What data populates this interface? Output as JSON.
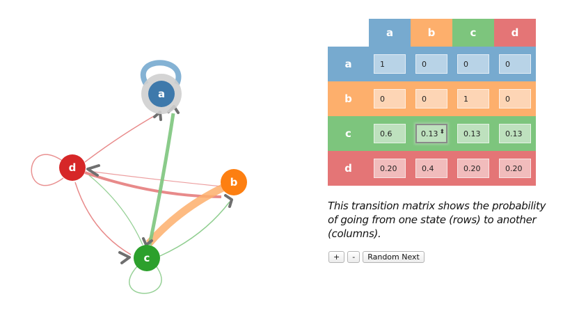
{
  "states": [
    "a",
    "b",
    "c",
    "d"
  ],
  "state_colors": {
    "a": "#3e79ab",
    "b": "#fd7f11",
    "c": "#2ca02c",
    "d": "#d62728"
  },
  "header_colors": {
    "a": "#77aacf",
    "b": "#fdaf6c",
    "c": "#7dc57d",
    "d": "#e47576"
  },
  "cell_colors": {
    "a": "#b8d3e7",
    "b": "#fdd5b5",
    "c": "#bee1be",
    "d": "#f1bcbc"
  },
  "matrix": {
    "rows": [
      {
        "label": "a",
        "values": [
          "1",
          "0",
          "0",
          "0"
        ]
      },
      {
        "label": "b",
        "values": [
          "0",
          "0",
          "1",
          "0"
        ]
      },
      {
        "label": "c",
        "values": [
          "0.6",
          "0.13",
          "0.13",
          "0.13"
        ]
      },
      {
        "label": "d",
        "values": [
          "0.20",
          "0.4",
          "0.20",
          "0.20"
        ]
      }
    ],
    "focused_cell": [
      2,
      1
    ],
    "spinner_glyph": "⬍"
  },
  "caption": "This transition matrix shows the probability of going from one state (rows) to another (columns).",
  "controls": {
    "plus_label": "+",
    "minus_label": "-",
    "random_next_label": "Random Next"
  },
  "current_state": "a"
}
